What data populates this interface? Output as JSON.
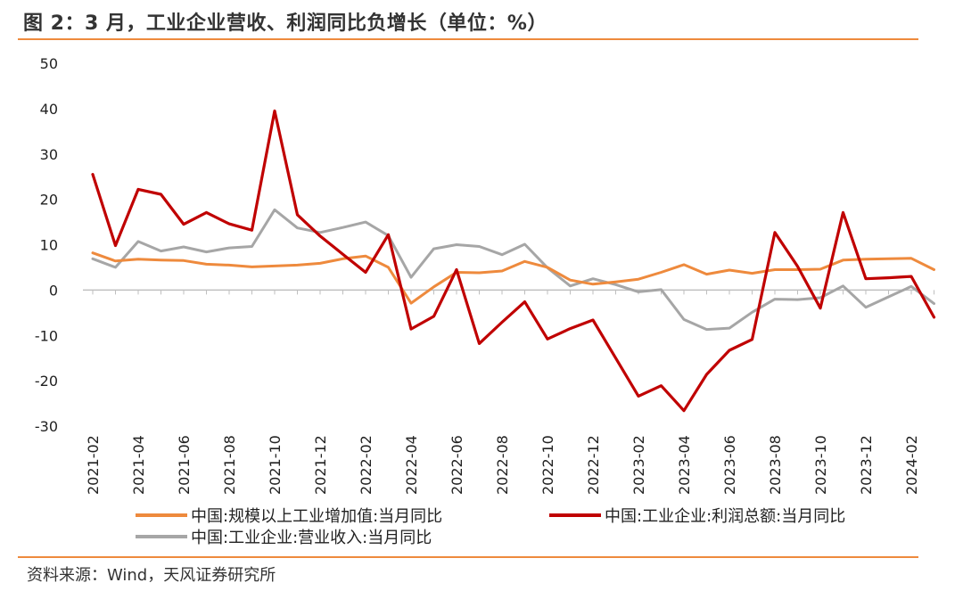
{
  "header": {
    "title": "图 2：3 月，工业企业营收、利润同比负增长（单位：%）"
  },
  "footer": {
    "source": "资料来源：Wind，天风证券研究所"
  },
  "chart_data": {
    "type": "line",
    "title": "",
    "xlabel": "",
    "ylabel": "",
    "ylim": [
      -30,
      50
    ],
    "yticks": [
      50,
      40,
      30,
      20,
      10,
      0,
      -10,
      -20,
      -30
    ],
    "grid": false,
    "legend_position": "bottom",
    "x": [
      "2021-02",
      "2021-03",
      "2021-04",
      "2021-05",
      "2021-06",
      "2021-07",
      "2021-08",
      "2021-09",
      "2021-10",
      "2021-11",
      "2021-12",
      "2022-01",
      "2022-02",
      "2022-03",
      "2022-04",
      "2022-05",
      "2022-06",
      "2022-07",
      "2022-08",
      "2022-09",
      "2022-10",
      "2022-11",
      "2022-12",
      "2023-01",
      "2023-02",
      "2023-03",
      "2023-04",
      "2023-05",
      "2023-06",
      "2023-07",
      "2023-08",
      "2023-09",
      "2023-10",
      "2023-11",
      "2023-12",
      "2024-01",
      "2024-02",
      "2024-03"
    ],
    "xtick_labels": [
      "2021-02",
      "2021-04",
      "2021-06",
      "2021-08",
      "2021-10",
      "2021-12",
      "2022-02",
      "2022-04",
      "2022-06",
      "2022-08",
      "2022-10",
      "2022-12",
      "2023-02",
      "2023-04",
      "2023-06",
      "2023-08",
      "2023-10",
      "2023-12",
      "2024-02"
    ],
    "series": [
      {
        "name": "中国:规模以上工业增加值:当月同比",
        "color": "#ee8a3d",
        "values": [
          8.2,
          6.4,
          6.8,
          6.6,
          6.5,
          5.7,
          5.5,
          5.1,
          5.3,
          5.5,
          5.9,
          6.9,
          7.5,
          5.0,
          -2.9,
          0.7,
          3.9,
          3.8,
          4.2,
          6.3,
          5.0,
          2.2,
          1.3,
          1.8,
          2.4,
          3.9,
          5.6,
          3.5,
          4.4,
          3.7,
          4.5,
          4.5,
          4.6,
          6.6,
          6.8,
          6.9,
          7.0,
          4.5
        ]
      },
      {
        "name": "中国:工业企业:利润总额:当月同比",
        "color": "#c00000",
        "values": [
          25.5,
          9.8,
          22.2,
          21.1,
          14.5,
          17.1,
          14.6,
          13.2,
          39.5,
          16.6,
          11.9,
          7.9,
          3.9,
          12.2,
          -8.6,
          -5.8,
          4.5,
          -11.8,
          -7.1,
          -2.6,
          -10.8,
          -8.5,
          -6.6,
          -15.0,
          -23.4,
          -21.1,
          -26.6,
          -18.6,
          -13.3,
          -10.9,
          12.7,
          5.2,
          -4.0,
          17.1,
          2.5,
          2.7,
          3.0,
          -6.0
        ]
      },
      {
        "name": "中国:工业企业:营业收入:当月同比",
        "color": "#a6a6a6",
        "values": [
          6.9,
          5.0,
          10.7,
          8.6,
          9.5,
          8.4,
          9.3,
          9.6,
          17.7,
          13.7,
          12.7,
          13.8,
          15.0,
          12.0,
          2.8,
          9.1,
          10.0,
          9.6,
          7.8,
          10.1,
          4.9,
          0.9,
          2.5,
          1.2,
          -0.4,
          0.1,
          -6.5,
          -8.7,
          -8.4,
          -4.9,
          -2.0,
          -2.1,
          -1.7,
          0.9,
          -3.8,
          -1.5,
          0.8,
          -3.0
        ]
      }
    ]
  }
}
